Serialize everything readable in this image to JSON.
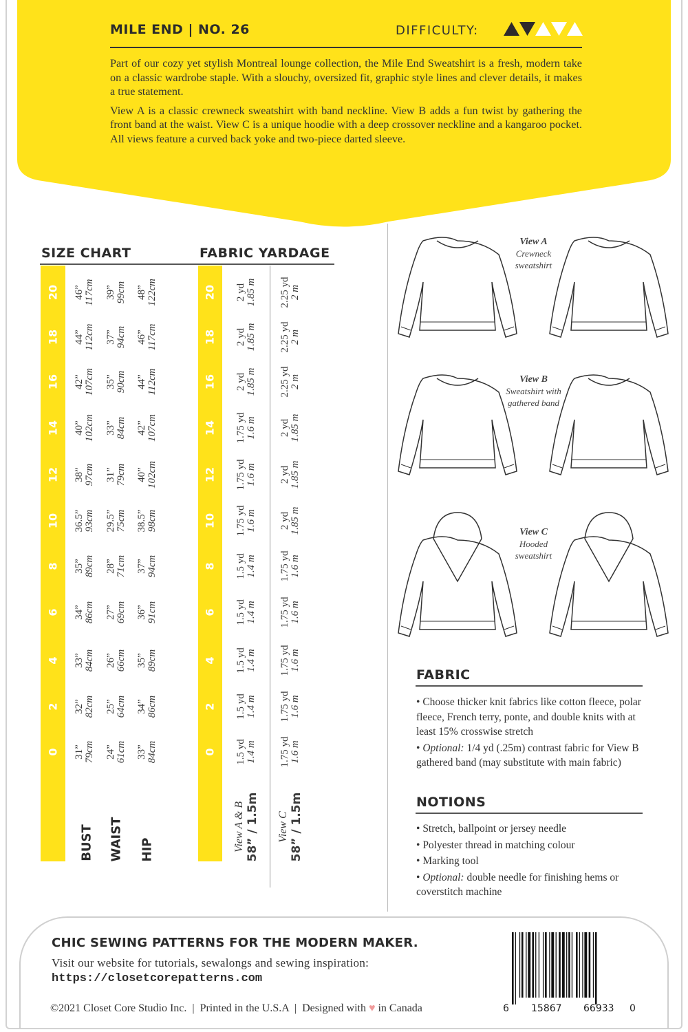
{
  "header": {
    "title": "MILE END | NO. 26",
    "difficulty_label": "DIFFICULTY:",
    "difficulty_level": 2,
    "difficulty_max": 5,
    "brand_yellow": "#ffe21a"
  },
  "intro": [
    "Part of our cozy yet stylish Montreal lounge collection, the Mile End Sweatshirt is a fresh, modern take on a classic wardrobe staple. With a slouchy, oversized fit, graphic style lines and clever details, it makes a true statement.",
    "View A is a classic crewneck sweatshirt with band neckline. View B adds a fun twist by gathering the front band at the waist. View C is a unique hoodie with a deep crossover neckline and a kangaroo pocket. All views feature a curved back yoke and two-piece darted sleeve."
  ],
  "size_chart": {
    "title": "SIZE CHART",
    "sizes": [
      "20",
      "18",
      "16",
      "14",
      "12",
      "10",
      "8",
      "6",
      "4",
      "2",
      "0"
    ],
    "rows": [
      {
        "label": "BUST",
        "in": [
          "46”",
          "44”",
          "42”",
          "40”",
          "38”",
          "36.5”",
          "35”",
          "34”",
          "33”",
          "32”",
          "31”"
        ],
        "cm": [
          "117cm",
          "112cm",
          "107cm",
          "102cm",
          "97cm",
          "93cm",
          "89cm",
          "86cm",
          "84cm",
          "82cm",
          "79cm"
        ]
      },
      {
        "label": "WAIST",
        "in": [
          "39”",
          "37”",
          "35”",
          "33”",
          "31”",
          "29.5”",
          "28”",
          "27”",
          "26”",
          "25”",
          "24”"
        ],
        "cm": [
          "99cm",
          "94cm",
          "90cm",
          "84cm",
          "79cm",
          "75cm",
          "71cm",
          "69cm",
          "66cm",
          "64cm",
          "61cm"
        ]
      },
      {
        "label": "HIP",
        "in": [
          "48”",
          "46”",
          "44”",
          "42”",
          "40”",
          "38.5”",
          "37”",
          "36”",
          "35”",
          "34”",
          "33”"
        ],
        "cm": [
          "122cm",
          "117cm",
          "112cm",
          "107cm",
          "102cm",
          "98cm",
          "94cm",
          "91cm",
          "89cm",
          "86cm",
          "84cm"
        ]
      }
    ]
  },
  "fabric_yardage": {
    "title": "FABRIC YARDAGE",
    "columns": [
      {
        "view": "View A & B",
        "width": "58” / 1.5m",
        "yd": [
          "2 yd",
          "2 yd",
          "2 yd",
          "1.75 yd",
          "1.75 yd",
          "1.75 yd",
          "1.5 yd",
          "1.5 yd",
          "1.5 yd",
          "1.5 yd",
          "1.5 yd"
        ],
        "m": [
          "1.85 m",
          "1.85 m",
          "1.85 m",
          "1.6 m",
          "1.6 m",
          "1.6 m",
          "1.4 m",
          "1.4 m",
          "1.4 m",
          "1.4 m",
          "1.4 m"
        ]
      },
      {
        "view": "View C",
        "width": "58” / 1.5m",
        "yd": [
          "2.25 yd",
          "2.25 yd",
          "2.25 yd",
          "2 yd",
          "2 yd",
          "2 yd",
          "1.75 yd",
          "1.75 yd",
          "1.75 yd",
          "1.75 yd",
          "1.75 yd"
        ],
        "m": [
          "2 m",
          "2 m",
          "2 m",
          "1.85 m",
          "1.85 m",
          "1.85 m",
          "1.6 m",
          "1.6 m",
          "1.6 m",
          "1.6 m",
          "1.6 m"
        ]
      }
    ]
  },
  "views": [
    {
      "name": "View A",
      "desc1": "Crewneck",
      "desc2": "sweatshirt"
    },
    {
      "name": "View B",
      "desc1": "Sweatshirt with",
      "desc2": "gathered band"
    },
    {
      "name": "View C",
      "desc1": "Hooded",
      "desc2": "sweatshirt"
    }
  ],
  "fabric": {
    "title": "FABRIC",
    "items": [
      {
        "em": "",
        "text": "Choose thicker knit fabrics like cotton fleece, polar fleece, French terry, ponte, and double knits with at least 15% crosswise stretch"
      },
      {
        "em": "Optional:",
        "text": " 1/4 yd (.25m) contrast fabric for View B gathered band (may substitute with main fabric)"
      }
    ]
  },
  "notions": {
    "title": "NOTIONS",
    "items": [
      {
        "em": "",
        "text": "Stretch, ballpoint or jersey needle"
      },
      {
        "em": "",
        "text": "Polyester thread in matching colour"
      },
      {
        "em": "",
        "text": "Marking tool"
      },
      {
        "em": "Optional:",
        "text": " double needle for finishing hems or coverstitch machine"
      }
    ]
  },
  "footer": {
    "tagline": "CHIC SEWING PATTERNS FOR THE MODERN MAKER.",
    "visit": "Visit our website for tutorials, sewalongs and sewing inspiration:",
    "url": "https://closetcorepatterns.com",
    "copy_a": "©2021 Closet Core Studio Inc.  |  Printed in the U.S.A  |  Designed with ",
    "copy_b": " in Canada",
    "heart_icon": "heart-icon",
    "barcode": [
      "6",
      "15867",
      "66933",
      "0"
    ]
  }
}
